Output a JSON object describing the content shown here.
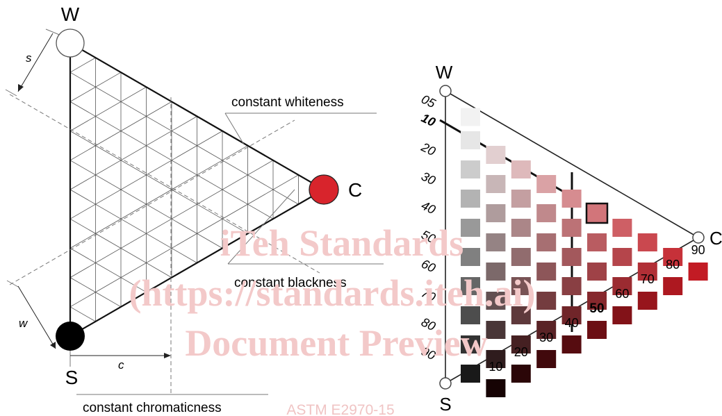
{
  "left_diagram": {
    "vertex_white": "W",
    "vertex_black": "S",
    "vertex_color": "C",
    "label_whiteness": "constant whiteness",
    "label_blackness": "constant blackness",
    "label_chromaticness": "constant chromaticness",
    "dim_s": "s",
    "dim_w": "w",
    "dim_c": "c",
    "colors": {
      "white_vertex": "#ffffff",
      "black_vertex": "#000000",
      "color_vertex": "#d8242c"
    }
  },
  "right_diagram": {
    "vertex_white": "W",
    "vertex_black": "S",
    "vertex_color": "C",
    "blackness_scale": [
      "05",
      "10",
      "20",
      "30",
      "40",
      "50",
      "60",
      "70",
      "80",
      "90"
    ],
    "blackness_bold": "10",
    "chromaticness_scale": [
      "10",
      "20",
      "30",
      "40",
      "50",
      "60",
      "70",
      "80",
      "90"
    ],
    "chromaticness_bold": "50",
    "highlight": {
      "blackness": 10,
      "chromaticness": 50
    },
    "hue_color": "#d81e28"
  },
  "watermark": {
    "line1": "iTeh Standards",
    "line2": "(https://standards.iteh.ai)",
    "line3": "Document Preview",
    "footer": "ASTM E2970-15"
  }
}
